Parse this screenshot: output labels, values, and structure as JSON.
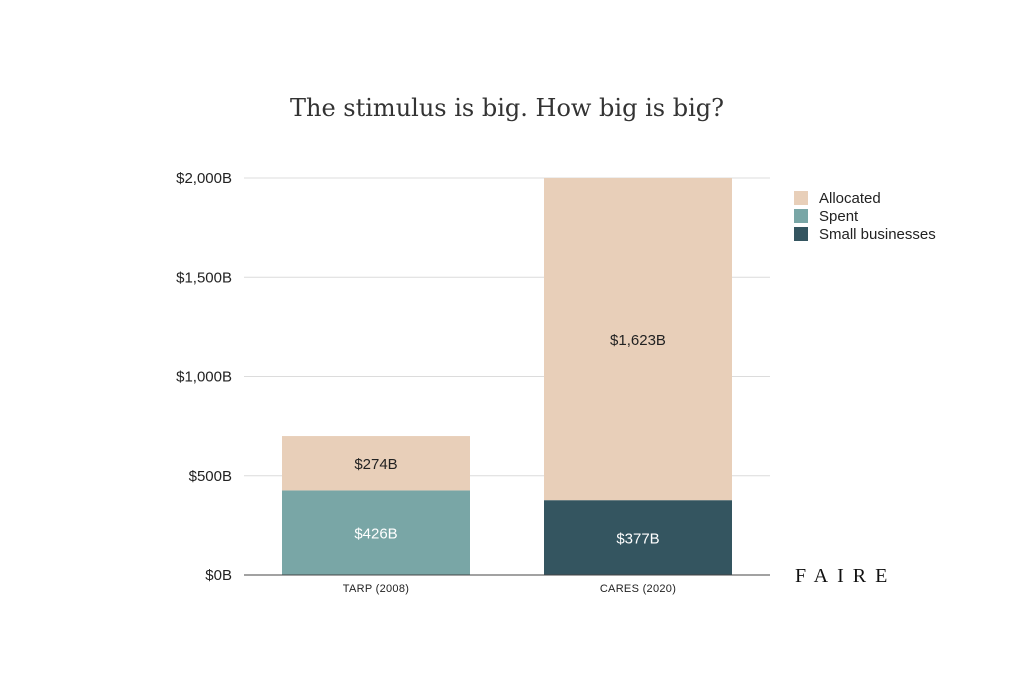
{
  "chart_data": {
    "type": "bar",
    "stacked": true,
    "title": "The stimulus is big. How big is big?",
    "xlabel": "",
    "ylabel": "",
    "categories": [
      "TARP (2008)",
      "CARES (2020)"
    ],
    "ylim": [
      0,
      2000
    ],
    "yticks": [
      {
        "value": 0,
        "label": "$0B"
      },
      {
        "value": 500,
        "label": "$500B"
      },
      {
        "value": 1000,
        "label": "$1,000B"
      },
      {
        "value": 1500,
        "label": "$1,500B"
      },
      {
        "value": 2000,
        "label": "$2,000B"
      }
    ],
    "grid": true,
    "legend_position": "top-right",
    "bars": [
      {
        "category": "TARP (2008)",
        "segments": [
          {
            "series": "Spent",
            "value": 426,
            "label": "$426B"
          },
          {
            "series": "Allocated",
            "value": 274,
            "label": "$274B"
          }
        ]
      },
      {
        "category": "CARES (2020)",
        "segments": [
          {
            "series": "Small businesses",
            "value": 377,
            "label": "$377B"
          },
          {
            "series": "Allocated",
            "value": 1623,
            "label": "$1,623B"
          }
        ]
      }
    ],
    "legend": [
      {
        "name": "Allocated",
        "color": "#e8cfb9"
      },
      {
        "name": "Spent",
        "color": "#79a6a6"
      },
      {
        "name": "Small businesses",
        "color": "#345560"
      }
    ],
    "label_colors": {
      "Allocated": "#222222",
      "Spent": "#ffffff",
      "Small businesses": "#ffffff"
    }
  },
  "brand": {
    "logo": "FAIRE"
  }
}
